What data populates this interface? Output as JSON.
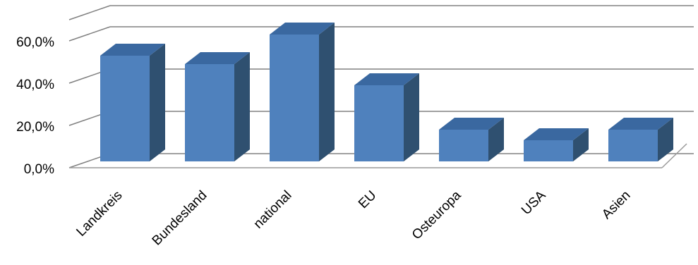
{
  "chart_data": {
    "type": "bar",
    "style": "3d-column",
    "categories": [
      "Landkreis",
      "Bundesland",
      "national",
      "EU",
      "Osteuropa",
      "USA",
      "Asien"
    ],
    "values": [
      50,
      46,
      60,
      36,
      15,
      10,
      15
    ],
    "y_ticks": [
      "0,0%",
      "20,0%",
      "40,0%",
      "60,0%"
    ],
    "ylim": [
      0,
      70
    ],
    "grid": true,
    "legend": "none",
    "colors": {
      "bar_front": "#4F81BD",
      "bar_top": "#3A68A0",
      "bar_side": "#2F5070",
      "grid": "#808080",
      "floor_edge": "#9a9a9a"
    }
  }
}
